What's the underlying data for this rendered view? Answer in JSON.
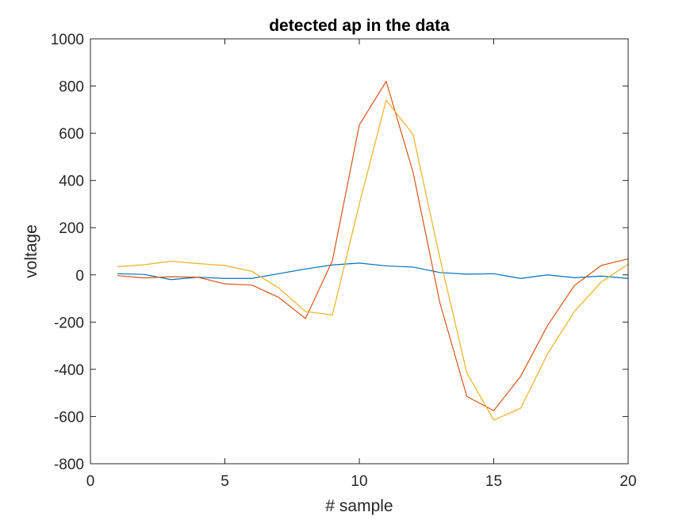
{
  "chart_data": {
    "type": "line",
    "title": "detected ap in the data",
    "xlabel": "# sample",
    "ylabel": "voltage",
    "xlim": [
      0,
      20
    ],
    "ylim": [
      -800,
      1000
    ],
    "xticks": [
      "0",
      "5",
      "10",
      "15",
      "20"
    ],
    "yticks": [
      "-800",
      "-600",
      "-400",
      "-200",
      "0",
      "200",
      "400",
      "600",
      "800",
      "1000"
    ],
    "grid": false,
    "x": [
      1,
      2,
      3,
      4,
      5,
      6,
      7,
      8,
      9,
      10,
      11,
      12,
      13,
      14,
      15,
      16,
      17,
      18,
      19,
      20
    ],
    "series": [
      {
        "color": "#0072BD",
        "values": [
          5,
          2,
          -20,
          -10,
          -15,
          -15,
          5,
          25,
          42,
          50,
          38,
          33,
          10,
          3,
          5,
          -15,
          0,
          -12,
          -5,
          -15
        ]
      },
      {
        "color": "#D95319",
        "values": [
          -3,
          -13,
          -8,
          -10,
          -38,
          -43,
          -95,
          -185,
          60,
          635,
          820,
          435,
          -120,
          -515,
          -575,
          -430,
          -215,
          -45,
          40,
          68
        ]
      },
      {
        "color": "#EDB120",
        "values": [
          35,
          43,
          58,
          48,
          40,
          15,
          -55,
          -155,
          -170,
          300,
          740,
          595,
          70,
          -415,
          -615,
          -565,
          -335,
          -155,
          -30,
          45
        ]
      }
    ]
  }
}
